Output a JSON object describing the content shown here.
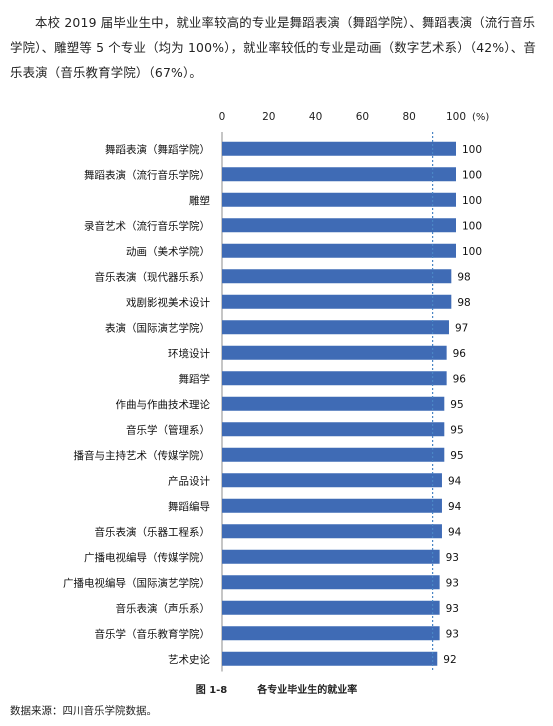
{
  "intro": "本校 2019 届毕业生中，就业率较高的专业是舞蹈表演（舞蹈学院）、舞蹈表演（流行音乐学院）、雕塑等 5 个专业（均为 100%），就业率较低的专业是动画（数字艺术系）（42%）、音乐表演（音乐教育学院）（67%）。",
  "chart_data": {
    "type": "bar",
    "orientation": "horizontal",
    "categories": [
      "舞蹈表演（舞蹈学院）",
      "舞蹈表演（流行音乐学院）",
      "雕塑",
      "录音艺术（流行音乐学院）",
      "动画（美术学院）",
      "音乐表演（现代器乐系）",
      "戏剧影视美术设计",
      "表演（国际演艺学院）",
      "环境设计",
      "舞蹈学",
      "作曲与作曲技术理论",
      "音乐学（管理系）",
      "播音与主持艺术（传媒学院）",
      "产品设计",
      "舞蹈编导",
      "音乐表演（乐器工程系）",
      "广播电视编导（传媒学院）",
      "广播电视编导（国际演艺学院）",
      "音乐表演（声乐系）",
      "音乐学（音乐教育学院）",
      "艺术史论"
    ],
    "values": [
      100,
      100,
      100,
      100,
      100,
      98,
      98,
      97,
      96,
      96,
      95,
      95,
      95,
      94,
      94,
      94,
      93,
      93,
      93,
      93,
      92
    ],
    "xlim": [
      0,
      100
    ],
    "xticks": [
      0,
      20,
      40,
      60,
      80,
      100
    ],
    "xunit": "(%)",
    "reference_line": 90,
    "axis_position": "top",
    "data_labels": true,
    "bar_color": "#3f6bb5",
    "reference_line_color": "#4a86c5"
  },
  "caption": {
    "figure_no": "图 1-8",
    "title": "各专业毕业生的就业率"
  },
  "source": "数据来源：四川音乐学院数据。"
}
